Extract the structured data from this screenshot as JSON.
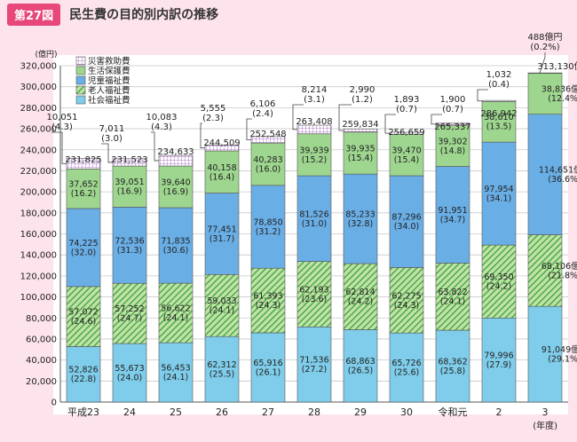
{
  "header": {
    "badge": "第27図",
    "title": "民生費の目的別内訳の推移"
  },
  "chart_data": {
    "type": "bar",
    "stacked": true,
    "ylabel": "(億円)",
    "xlabel": "(年度)",
    "ylim": [
      0,
      320000
    ],
    "ytick_step": 20000,
    "yticks": [
      "0",
      "20,000",
      "40,000",
      "60,000",
      "80,000",
      "100,000",
      "120,000",
      "140,000",
      "160,000",
      "180,000",
      "200,000",
      "220,000",
      "240,000",
      "260,000",
      "280,000",
      "300,000",
      "320,000"
    ],
    "categories": [
      "平成23",
      "24",
      "25",
      "26",
      "27",
      "28",
      "29",
      "30",
      "令和元",
      "2",
      "3"
    ],
    "legend": [
      "災害救助費",
      "生活保護費",
      "児童福祉費",
      "老人福祉費",
      "社会福祉費"
    ],
    "series": [
      {
        "name": "社会福祉費",
        "color": "#7fcdea",
        "pattern": "solid",
        "values": [
          52826,
          55673,
          56453,
          62312,
          65916,
          71536,
          68863,
          65726,
          68362,
          79996,
          91049
        ],
        "labels": [
          "52,826\n(22.8)",
          "55,673\n(24.0)",
          "56,453\n(24.1)",
          "62,312\n(25.5)",
          "65,916\n(26.1)",
          "71,536\n(27.2)",
          "68,863\n(26.5)",
          "65,726\n(25.6)",
          "68,362\n(25.8)",
          "79,996\n(27.9)",
          "91,049億円\n(29.1%)"
        ]
      },
      {
        "name": "老人福祉費",
        "color": "#58b85a",
        "pattern": "hatch",
        "values": [
          57072,
          57252,
          56622,
          59033,
          61393,
          62193,
          62814,
          62275,
          63822,
          69350,
          68106
        ],
        "labels": [
          "57,072\n(24.6)",
          "57,252\n(24.7)",
          "56,622\n(24.1)",
          "59,033\n(24.1)",
          "61,393\n(24.3)",
          "62,193\n(23.6)",
          "62,814\n(24.2)",
          "62,275\n(24.3)",
          "63,822\n(24.1)",
          "69,350\n(24.2)",
          "68,106億円\n(21.8%)"
        ]
      },
      {
        "name": "児童福祉費",
        "color": "#6aaee6",
        "pattern": "solid",
        "values": [
          74225,
          72536,
          71835,
          77451,
          78850,
          81526,
          85233,
          87296,
          91951,
          97954,
          114651
        ],
        "labels": [
          "74,225\n(32.0)",
          "72,536\n(31.3)",
          "71,835\n(30.6)",
          "77,451\n(31.7)",
          "78,850\n(31.2)",
          "81,526\n(31.0)",
          "85,233\n(32.8)",
          "87,296\n(34.0)",
          "91,951\n(34.7)",
          "97,954\n(34.1)",
          "114,651億円\n(36.6%)"
        ]
      },
      {
        "name": "生活保護費",
        "color": "#9ed68f",
        "pattern": "solid",
        "values": [
          37652,
          39051,
          39640,
          40158,
          40283,
          39939,
          39935,
          39470,
          39302,
          38610,
          38836
        ],
        "labels": [
          "37,652\n(16.2)",
          "39,051\n(16.9)",
          "39,640\n(16.9)",
          "40,158\n(16.4)",
          "40,283\n(16.0)",
          "39,939\n(15.2)",
          "39,935\n(15.4)",
          "39,470\n(15.4)",
          "39,302\n(14.8)",
          "38,610\n(13.5)",
          "38,836億円\n(12.4%)"
        ]
      },
      {
        "name": "災害救助費",
        "color": "#ffffff",
        "pattern": "grid",
        "values": [
          10051,
          7011,
          10083,
          5555,
          6106,
          8214,
          2990,
          1893,
          1900,
          1032,
          488
        ],
        "labels": [
          "10,051\n(4.3)",
          "7,011\n(3.0)",
          "10,083\n(4.3)",
          "5,555\n(2.3)",
          "6,106\n(2.4)",
          "8,214\n(3.1)",
          "2,990\n(1.2)",
          "1,893\n(0.7)",
          "1,900\n(0.7)",
          "1,032\n(0.4)",
          "488億円\n(0.2%)"
        ]
      }
    ],
    "totals": [
      "231,825",
      "231,523",
      "234,633",
      "244,509",
      "252,548",
      "263,408",
      "259,834",
      "256,659",
      "265,337",
      "286,942",
      "313,130億円"
    ]
  }
}
